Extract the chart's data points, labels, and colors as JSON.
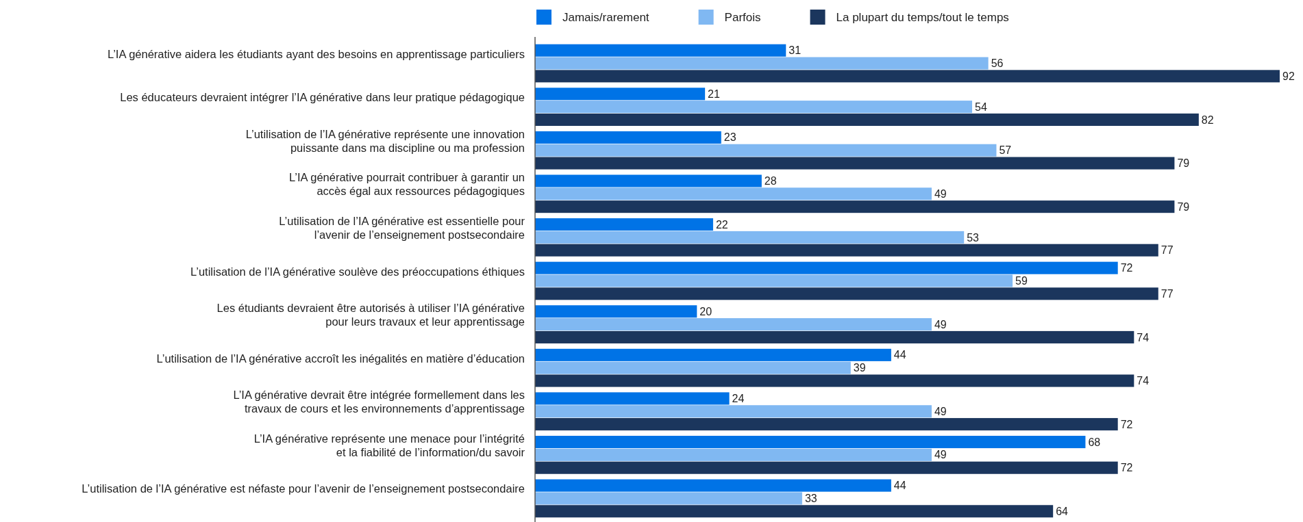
{
  "chart_data": {
    "type": "bar",
    "orientation": "horizontal",
    "data_labels": true,
    "legend": "top",
    "grid": false,
    "categories": [
      "L’IA générative aidera les étudiants ayant des besoins en apprentissage particuliers",
      "Les éducateurs devraient intégrer l’IA générative dans leur pratique pédagogique",
      "L’utilisation de l’IA générative représente une innovation\npuissante dans ma discipline ou ma profession",
      "L’IA générative pourrait contribuer à garantir un\naccès égal aux ressources pédagogiques",
      "L’utilisation de l’IA générative est essentielle pour\nl’avenir de l’enseignement postsecondaire",
      "L’utilisation de l’IA générative soulève des préoccupations éthiques",
      "Les étudiants devraient être autorisés à utiliser l’IA générative\npour leurs travaux et leur apprentissage",
      "L’utilisation de l’IA générative accroît les inégalités en matière d’éducation",
      "L’IA générative devrait être intégrée formellement dans les\ntravaux de cours et les environnements d’apprentissage",
      "L’IA générative représente une menace pour l’intégrité\net la fiabilité de l’information/du savoir",
      "L’utilisation de l’IA générative est néfaste pour l’avenir de l’enseignement postsecondaire"
    ],
    "series": [
      {
        "name": "Jamais/rarement",
        "color": "#0073e6",
        "values": [
          31,
          21,
          23,
          28,
          22,
          72,
          20,
          44,
          24,
          68,
          44
        ]
      },
      {
        "name": "Parfois",
        "color": "#80b8f2",
        "values": [
          56,
          54,
          57,
          49,
          53,
          59,
          49,
          39,
          49,
          49,
          33
        ]
      },
      {
        "name": "La plupart du temps/tout le temps",
        "color": "#1b365d",
        "values": [
          92,
          82,
          79,
          79,
          77,
          77,
          74,
          74,
          72,
          72,
          64
        ]
      }
    ]
  }
}
